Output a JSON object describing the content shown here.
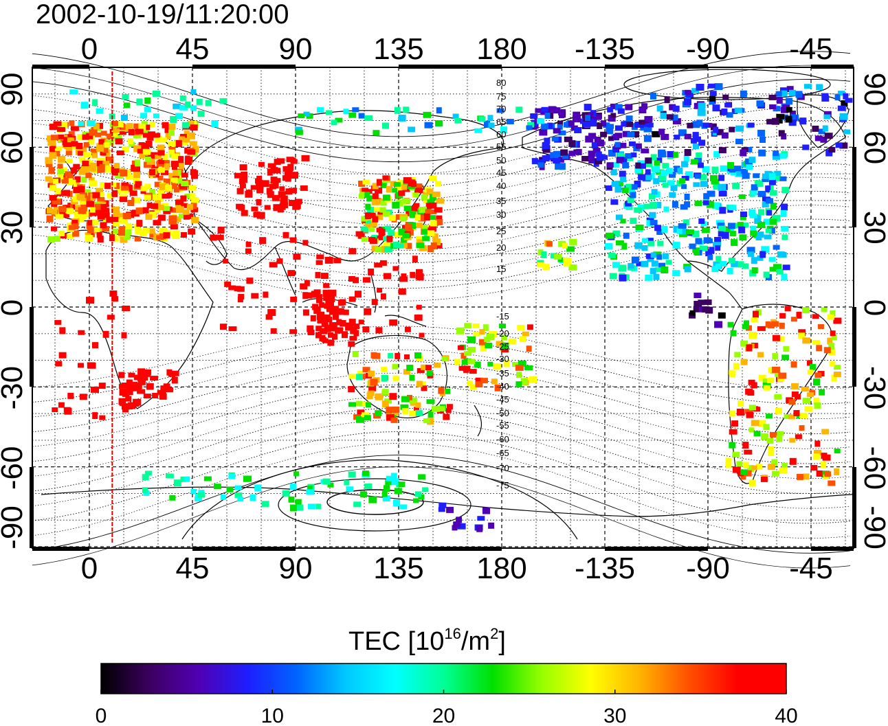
{
  "title": "2002-10-19/11:20:00",
  "map": {
    "x_axis_ticks": [
      "0",
      "45",
      "90",
      "135",
      "180",
      "-135",
      "-90",
      "-45"
    ],
    "y_axis_ticks": [
      "90",
      "60",
      "30",
      "0",
      "-30",
      "-60",
      "-90"
    ],
    "contour_labels_north": [
      "80",
      "75",
      "70",
      "65",
      "60",
      "55",
      "50",
      "45",
      "40",
      "35",
      "30",
      "25",
      "20",
      "15"
    ],
    "contour_labels_south": [
      "-15",
      "-20",
      "-25",
      "-30",
      "-35",
      "-40",
      "-45",
      "-50",
      "-55",
      "-60",
      "-65",
      "-70",
      "-75"
    ],
    "terminator_longitude": 10,
    "terminator_color": "#e00000"
  },
  "colorbar": {
    "title_main": "TEC  [10",
    "title_exp": "16",
    "title_unit": "/m",
    "title_unit_exp": "2",
    "title_close": "]",
    "min": 0,
    "max": 40,
    "tick_labels": [
      "0",
      "10",
      "20",
      "30",
      "40"
    ],
    "colors": [
      "#000000",
      "#3c0060",
      "#5000b4",
      "#1e1eff",
      "#0064ff",
      "#00c8ff",
      "#00ffff",
      "#00ff96",
      "#00e000",
      "#96ff00",
      "#ffff00",
      "#ffb400",
      "#ff5000",
      "#ff0000",
      "#ff0000"
    ]
  }
}
